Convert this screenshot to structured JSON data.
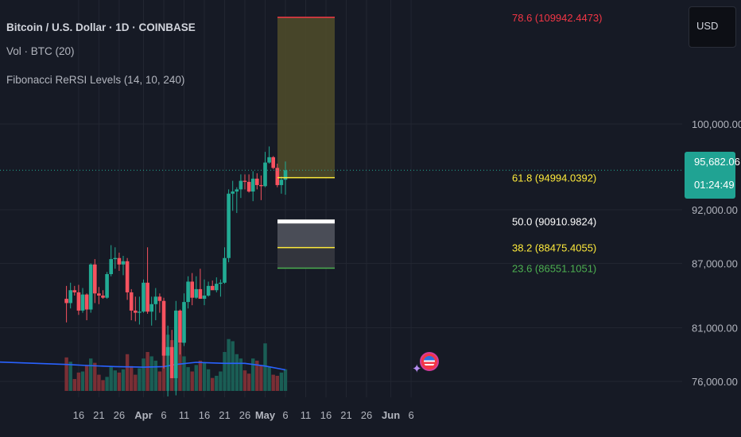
{
  "header": {
    "title": "Bitcoin / U.S. Dollar · 1D · COINBASE",
    "indicator_volume": "Vol · BTC (20)",
    "indicator_fib": "Fibonacci ReRSI Levels (14, 10, 240)"
  },
  "toolbar": {
    "currency_label": "USD"
  },
  "price_tag": {
    "value": "95,682.06",
    "countdown": "01:24:49"
  },
  "colors": {
    "background": "#161a25",
    "grid": "#222631",
    "up": "#22ab94",
    "down": "#f7525f",
    "volume_up": "#1a5e55",
    "volume_down": "#7a2f35",
    "volume_ma": "#2962ff",
    "fib_red": "#f23645",
    "fib_yellow": "#ffeb3b",
    "fib_green": "#4caf50",
    "fib_white": "#ffffff",
    "price_tag": "#20a393"
  },
  "icons": {
    "logo": "bitcoin-us-flag-logo-icon",
    "sparkle": "sparkle-icon"
  },
  "chart_data": {
    "type": "candlestick",
    "title": "Bitcoin / U.S. Dollar · 1D · COINBASE",
    "xlabel": "",
    "ylabel": "",
    "y_ticks": [
      {
        "value": 100000,
        "label": "100,000.00"
      },
      {
        "value": 92000,
        "label": "92,000.00"
      },
      {
        "value": 87000,
        "label": "87,000.00"
      },
      {
        "value": 81000,
        "label": "81,000.00"
      },
      {
        "value": 76000,
        "label": "76,000.00"
      }
    ],
    "x_ticks": [
      {
        "date": "2025-03-16",
        "label": "16"
      },
      {
        "date": "2025-03-21",
        "label": "21"
      },
      {
        "date": "2025-03-26",
        "label": "26"
      },
      {
        "date": "2025-04-01",
        "label": "Apr",
        "bold": true
      },
      {
        "date": "2025-04-06",
        "label": "6"
      },
      {
        "date": "2025-04-11",
        "label": "11"
      },
      {
        "date": "2025-04-16",
        "label": "16"
      },
      {
        "date": "2025-04-21",
        "label": "21"
      },
      {
        "date": "2025-04-26",
        "label": "26"
      },
      {
        "date": "2025-05-01",
        "label": "May",
        "bold": true
      },
      {
        "date": "2025-05-06",
        "label": "6"
      },
      {
        "date": "2025-05-11",
        "label": "11"
      },
      {
        "date": "2025-05-16",
        "label": "16"
      },
      {
        "date": "2025-05-21",
        "label": "21"
      },
      {
        "date": "2025-05-26",
        "label": "26"
      },
      {
        "date": "2025-06-01",
        "label": "Jun",
        "bold": true
      },
      {
        "date": "2025-06-06",
        "label": "6"
      }
    ],
    "current_price": 95682.06,
    "candles": [
      {
        "date": "2025-03-13",
        "o": 83700,
        "h": 84900,
        "l": 81500,
        "c": 83300
      },
      {
        "date": "2025-03-14",
        "o": 83300,
        "h": 85200,
        "l": 82800,
        "c": 84500
      },
      {
        "date": "2025-03-15",
        "o": 84500,
        "h": 84900,
        "l": 84000,
        "c": 84300
      },
      {
        "date": "2025-03-16",
        "o": 84300,
        "h": 85000,
        "l": 82200,
        "c": 82600
      },
      {
        "date": "2025-03-17",
        "o": 82600,
        "h": 84700,
        "l": 82400,
        "c": 84100
      },
      {
        "date": "2025-03-18",
        "o": 84100,
        "h": 84200,
        "l": 81700,
        "c": 82700
      },
      {
        "date": "2025-03-19",
        "o": 82700,
        "h": 87000,
        "l": 82400,
        "c": 86900
      },
      {
        "date": "2025-03-20",
        "o": 86900,
        "h": 87400,
        "l": 83300,
        "c": 84200
      },
      {
        "date": "2025-03-21",
        "o": 84200,
        "h": 84800,
        "l": 83200,
        "c": 84000
      },
      {
        "date": "2025-03-22",
        "o": 84000,
        "h": 84500,
        "l": 83700,
        "c": 83800
      },
      {
        "date": "2025-03-23",
        "o": 83800,
        "h": 86200,
        "l": 83700,
        "c": 86000
      },
      {
        "date": "2025-03-24",
        "o": 86000,
        "h": 88700,
        "l": 85800,
        "c": 87400
      },
      {
        "date": "2025-03-25",
        "o": 87400,
        "h": 88500,
        "l": 86500,
        "c": 87500
      },
      {
        "date": "2025-03-26",
        "o": 87500,
        "h": 88000,
        "l": 86300,
        "c": 86900
      },
      {
        "date": "2025-03-27",
        "o": 86900,
        "h": 87700,
        "l": 85900,
        "c": 87200
      },
      {
        "date": "2025-03-28",
        "o": 87200,
        "h": 87500,
        "l": 83600,
        "c": 84300
      },
      {
        "date": "2025-03-29",
        "o": 84300,
        "h": 84600,
        "l": 81700,
        "c": 82600
      },
      {
        "date": "2025-03-30",
        "o": 82600,
        "h": 83900,
        "l": 81600,
        "c": 82400
      },
      {
        "date": "2025-03-31",
        "o": 82400,
        "h": 83900,
        "l": 81300,
        "c": 82500
      },
      {
        "date": "2025-04-01",
        "o": 82500,
        "h": 85500,
        "l": 82400,
        "c": 85200
      },
      {
        "date": "2025-04-02",
        "o": 85200,
        "h": 88500,
        "l": 82300,
        "c": 82500
      },
      {
        "date": "2025-04-03",
        "o": 82500,
        "h": 83900,
        "l": 81200,
        "c": 83200
      },
      {
        "date": "2025-04-04",
        "o": 83200,
        "h": 84700,
        "l": 81700,
        "c": 83900
      },
      {
        "date": "2025-04-05",
        "o": 83900,
        "h": 84200,
        "l": 82400,
        "c": 83500
      },
      {
        "date": "2025-04-06",
        "o": 83500,
        "h": 83800,
        "l": 77200,
        "c": 78400
      },
      {
        "date": "2025-04-07",
        "o": 78400,
        "h": 81200,
        "l": 74600,
        "c": 79200
      },
      {
        "date": "2025-04-08",
        "o": 79200,
        "h": 80800,
        "l": 76300,
        "c": 76300
      },
      {
        "date": "2025-04-09",
        "o": 76300,
        "h": 83500,
        "l": 74700,
        "c": 82600
      },
      {
        "date": "2025-04-10",
        "o": 82600,
        "h": 82700,
        "l": 78500,
        "c": 79600
      },
      {
        "date": "2025-04-11",
        "o": 79600,
        "h": 84200,
        "l": 79300,
        "c": 83400
      },
      {
        "date": "2025-04-12",
        "o": 83400,
        "h": 85800,
        "l": 82800,
        "c": 85300
      },
      {
        "date": "2025-04-13",
        "o": 85300,
        "h": 86100,
        "l": 83100,
        "c": 83800
      },
      {
        "date": "2025-04-14",
        "o": 83800,
        "h": 85800,
        "l": 83700,
        "c": 84600
      },
      {
        "date": "2025-04-15",
        "o": 84600,
        "h": 86500,
        "l": 83800,
        "c": 83700
      },
      {
        "date": "2025-04-16",
        "o": 83700,
        "h": 85500,
        "l": 83100,
        "c": 84000
      },
      {
        "date": "2025-04-17",
        "o": 84000,
        "h": 85300,
        "l": 83900,
        "c": 84900
      },
      {
        "date": "2025-04-18",
        "o": 84900,
        "h": 85400,
        "l": 84600,
        "c": 84500
      },
      {
        "date": "2025-04-19",
        "o": 84500,
        "h": 85700,
        "l": 84300,
        "c": 85100
      },
      {
        "date": "2025-04-20",
        "o": 85100,
        "h": 85500,
        "l": 83900,
        "c": 85200
      },
      {
        "date": "2025-04-21",
        "o": 85200,
        "h": 88500,
        "l": 85100,
        "c": 87500
      },
      {
        "date": "2025-04-22",
        "o": 87500,
        "h": 93900,
        "l": 87100,
        "c": 93500
      },
      {
        "date": "2025-04-23",
        "o": 93500,
        "h": 94700,
        "l": 91900,
        "c": 93700
      },
      {
        "date": "2025-04-24",
        "o": 93700,
        "h": 94100,
        "l": 91700,
        "c": 93900
      },
      {
        "date": "2025-04-25",
        "o": 93900,
        "h": 95300,
        "l": 93100,
        "c": 94700
      },
      {
        "date": "2025-04-26",
        "o": 94700,
        "h": 95300,
        "l": 93900,
        "c": 94600
      },
      {
        "date": "2025-04-27",
        "o": 94600,
        "h": 95300,
        "l": 93600,
        "c": 93700
      },
      {
        "date": "2025-04-28",
        "o": 93700,
        "h": 95600,
        "l": 92800,
        "c": 94900
      },
      {
        "date": "2025-04-29",
        "o": 94900,
        "h": 95400,
        "l": 93900,
        "c": 94300
      },
      {
        "date": "2025-04-30",
        "o": 94300,
        "h": 95200,
        "l": 92900,
        "c": 94200
      },
      {
        "date": "2025-05-01",
        "o": 94200,
        "h": 97400,
        "l": 94100,
        "c": 96400
      },
      {
        "date": "2025-05-02",
        "o": 96400,
        "h": 97900,
        "l": 96300,
        "c": 96900
      },
      {
        "date": "2025-05-03",
        "o": 96900,
        "h": 97000,
        "l": 95800,
        "c": 95900
      },
      {
        "date": "2025-05-04",
        "o": 95900,
        "h": 96300,
        "l": 94100,
        "c": 94300
      },
      {
        "date": "2025-05-05",
        "o": 94300,
        "h": 95100,
        "l": 93500,
        "c": 94800
      },
      {
        "date": "2025-05-06",
        "o": 94800,
        "h": 96500,
        "l": 93400,
        "c": 95682
      }
    ],
    "volume": [
      31,
      27,
      11,
      17,
      18,
      24,
      30,
      26,
      15,
      10,
      13,
      22,
      19,
      17,
      20,
      34,
      23,
      15,
      21,
      30,
      36,
      32,
      28,
      18,
      45,
      52,
      47,
      60,
      44,
      32,
      22,
      18,
      24,
      28,
      26,
      20,
      12,
      14,
      18,
      36,
      48,
      46,
      34,
      30,
      19,
      16,
      30,
      28,
      24,
      44,
      22,
      15,
      14,
      17,
      20
    ],
    "volume_ma": [
      [
        "2025-03-13",
        24.5
      ],
      [
        "2025-03-18",
        23.5
      ],
      [
        "2025-03-25",
        22.5
      ],
      [
        "2025-04-01",
        22.0
      ],
      [
        "2025-04-06",
        22.5
      ],
      [
        "2025-04-09",
        24.5
      ],
      [
        "2025-04-14",
        26.5
      ],
      [
        "2025-04-21",
        25.5
      ],
      [
        "2025-04-26",
        25.5
      ],
      [
        "2025-05-01",
        23.0
      ],
      [
        "2025-05-06",
        19.5
      ]
    ],
    "fib_zone": {
      "start": "2025-05-06",
      "end": "2025-05-16"
    },
    "fib_levels": [
      {
        "ratio": "78.6",
        "value": 109942.4473,
        "label": "78.6 (109942.4473)",
        "color": "#f23645"
      },
      {
        "ratio": "61.8",
        "value": 94994.0392,
        "label": "61.8 (94994.0392)",
        "color": "#ffeb3b"
      },
      {
        "ratio": "50.0",
        "value": 90910.9824,
        "label": "50.0 (90910.9824)",
        "color": "#ffffff"
      },
      {
        "ratio": "38.2",
        "value": 88475.4055,
        "label": "38.2 (88475.4055)",
        "color": "#ffeb3b"
      },
      {
        "ratio": "23.6",
        "value": 86551.1051,
        "label": "23.6 (86551.1051)",
        "color": "#4caf50"
      }
    ]
  }
}
